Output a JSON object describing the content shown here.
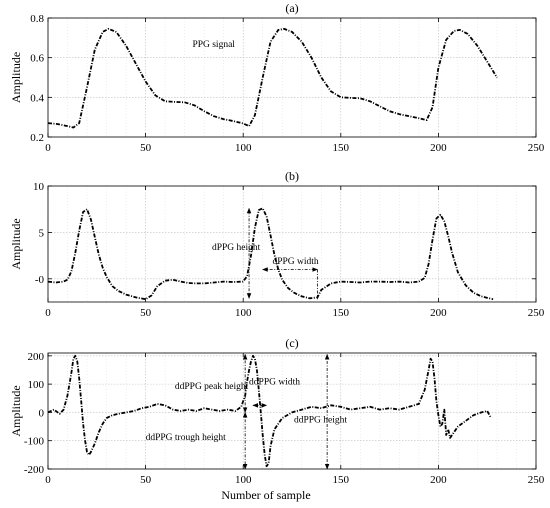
{
  "chart_data": [
    {
      "type": "line",
      "title": "(a)",
      "xlabel": "",
      "ylabel": "Amplitude",
      "xlim": [
        0,
        250
      ],
      "ylim": [
        0.2,
        0.8
      ],
      "xticks": [
        0,
        50,
        100,
        150,
        200,
        250
      ],
      "yticks": [
        0.2,
        0.4,
        0.6,
        0.8
      ],
      "xtick_labels": [
        "0",
        "50",
        "100",
        "150",
        "200",
        "250"
      ],
      "ytick_labels": [
        "0.2",
        "0.4",
        "0.6",
        "0.8"
      ],
      "grid": true,
      "annotations": [
        {
          "text": "PPG signal",
          "x": 74,
          "y": 0.655
        }
      ],
      "series": [
        {
          "x": [
            0,
            5,
            10,
            13,
            16,
            20,
            24,
            28,
            31,
            35,
            40,
            45,
            50,
            55,
            60,
            65,
            70,
            75,
            80,
            85,
            90,
            95,
            100,
            103,
            106,
            110,
            114,
            118,
            121,
            125,
            130,
            135,
            140,
            145,
            150,
            155,
            160,
            165,
            170,
            175,
            180,
            185,
            190,
            194,
            197,
            200,
            204,
            208,
            211,
            215,
            220,
            225,
            230
          ],
          "values": [
            0.27,
            0.265,
            0.255,
            0.248,
            0.27,
            0.45,
            0.64,
            0.73,
            0.745,
            0.73,
            0.66,
            0.57,
            0.48,
            0.41,
            0.38,
            0.377,
            0.375,
            0.36,
            0.33,
            0.305,
            0.29,
            0.28,
            0.268,
            0.255,
            0.31,
            0.5,
            0.68,
            0.74,
            0.745,
            0.73,
            0.68,
            0.6,
            0.5,
            0.43,
            0.4,
            0.397,
            0.395,
            0.38,
            0.355,
            0.33,
            0.315,
            0.305,
            0.295,
            0.285,
            0.35,
            0.55,
            0.69,
            0.735,
            0.74,
            0.72,
            0.66,
            0.58,
            0.5
          ]
        }
      ]
    },
    {
      "type": "line",
      "title": "(b)",
      "xlabel": "",
      "ylabel": "Amplitude",
      "xlim": [
        0,
        250
      ],
      "ylim": [
        -2.5,
        10
      ],
      "xticks": [
        0,
        50,
        100,
        150,
        200,
        250
      ],
      "yticks": [
        0,
        5,
        10
      ],
      "xtick_labels": [
        "0",
        "50",
        "100",
        "150",
        "200",
        "250"
      ],
      "ytick_labels": [
        "-0",
        "5",
        "10"
      ],
      "grid": true,
      "annotations": [
        {
          "text": "dPPG height",
          "x": 84,
          "y": 3.1
        },
        {
          "text": "dPPG width",
          "x": 115,
          "y": 1.6
        }
      ],
      "series": [
        {
          "x": [
            0,
            4,
            8,
            10,
            12,
            14,
            16,
            18,
            20,
            22,
            24,
            26,
            28,
            30,
            33,
            36,
            40,
            45,
            50,
            53,
            56,
            60,
            64,
            68,
            72,
            76,
            80,
            85,
            90,
            95,
            100,
            102,
            104,
            106,
            108,
            110,
            112,
            114,
            116,
            118,
            120,
            123,
            126,
            130,
            134,
            138,
            140,
            145,
            150,
            155,
            160,
            165,
            170,
            175,
            180,
            185,
            190,
            193,
            195,
            197,
            199,
            201,
            203,
            205,
            207,
            210,
            214,
            218,
            222,
            226,
            228
          ],
          "values": [
            -0.3,
            -0.4,
            -0.3,
            -0.1,
            0.8,
            2.8,
            5.2,
            7.2,
            7.5,
            6.4,
            4.5,
            2.6,
            1.2,
            0.2,
            -0.8,
            -1.3,
            -1.7,
            -2.0,
            -2.2,
            -1.8,
            -0.8,
            -0.2,
            -0.1,
            -0.3,
            -0.45,
            -0.5,
            -0.5,
            -0.4,
            -0.3,
            -0.35,
            -0.3,
            0.3,
            2.5,
            5.5,
            7.4,
            7.6,
            6.7,
            4.7,
            2.6,
            1.0,
            -0.1,
            -1.0,
            -1.5,
            -1.9,
            -2.1,
            -2.0,
            -1.2,
            -0.5,
            -0.3,
            -0.35,
            -0.4,
            -0.3,
            -0.3,
            -0.35,
            -0.3,
            -0.4,
            -0.3,
            0.1,
            1.6,
            4.2,
            6.5,
            6.9,
            6.2,
            4.6,
            2.8,
            0.7,
            -0.7,
            -1.5,
            -1.9,
            -2.1,
            -2.2
          ]
        }
      ]
    },
    {
      "type": "line",
      "title": "(c)",
      "xlabel": "Number of sample",
      "ylabel": "Amplitude",
      "xlim": [
        0,
        250
      ],
      "ylim": [
        -200,
        210
      ],
      "xticks": [
        0,
        50,
        100,
        150,
        200,
        250
      ],
      "yticks": [
        -200,
        -100,
        0,
        100,
        200
      ],
      "xtick_labels": [
        "0",
        "50",
        "100",
        "150",
        "200",
        "250"
      ],
      "ytick_labels": [
        "-200",
        "-100",
        "0",
        "100",
        "200"
      ],
      "grid": true,
      "annotations": [
        {
          "text": "ddPPG peak height",
          "x": 65,
          "y": 83
        },
        {
          "text": "ddPPG width",
          "x": 103,
          "y": 98
        },
        {
          "text": "ddPPG trough height",
          "x": 50,
          "y": -97
        },
        {
          "text": "ddPPG height",
          "x": 126,
          "y": -35
        }
      ],
      "series": [
        {
          "x": [
            0,
            3,
            6,
            8,
            10,
            12,
            13,
            14,
            15,
            16,
            17,
            18,
            19,
            20,
            21,
            22,
            24,
            26,
            28,
            30,
            33,
            36,
            40,
            44,
            48,
            52,
            56,
            60,
            64,
            68,
            72,
            76,
            80,
            84,
            88,
            92,
            96,
            99,
            101,
            102,
            103,
            104,
            105,
            106,
            107,
            108,
            109,
            110,
            111,
            112,
            113,
            114,
            116,
            120,
            125,
            130,
            135,
            140,
            145,
            150,
            155,
            160,
            165,
            170,
            175,
            180,
            185,
            190,
            193,
            195,
            196,
            197,
            198,
            199,
            200,
            201,
            202,
            203,
            204,
            205,
            206,
            208,
            210,
            214,
            218,
            222,
            225,
            227
          ],
          "values": [
            0,
            10,
            -5,
            10,
            60,
            140,
            190,
            200,
            180,
            120,
            40,
            -40,
            -100,
            -140,
            -150,
            -140,
            -110,
            -70,
            -40,
            -20,
            -10,
            -5,
            0,
            5,
            15,
            20,
            30,
            25,
            10,
            5,
            10,
            5,
            15,
            10,
            5,
            10,
            5,
            20,
            60,
            110,
            150,
            180,
            200,
            190,
            150,
            80,
            0,
            -80,
            -150,
            -190,
            -180,
            -120,
            -60,
            -20,
            0,
            10,
            20,
            15,
            25,
            20,
            10,
            15,
            20,
            10,
            15,
            10,
            20,
            30,
            80,
            150,
            190,
            180,
            120,
            40,
            -10,
            -50,
            -40,
            10,
            -80,
            -60,
            -90,
            -70,
            -50,
            -30,
            -10,
            0,
            5,
            -20
          ]
        }
      ]
    }
  ]
}
